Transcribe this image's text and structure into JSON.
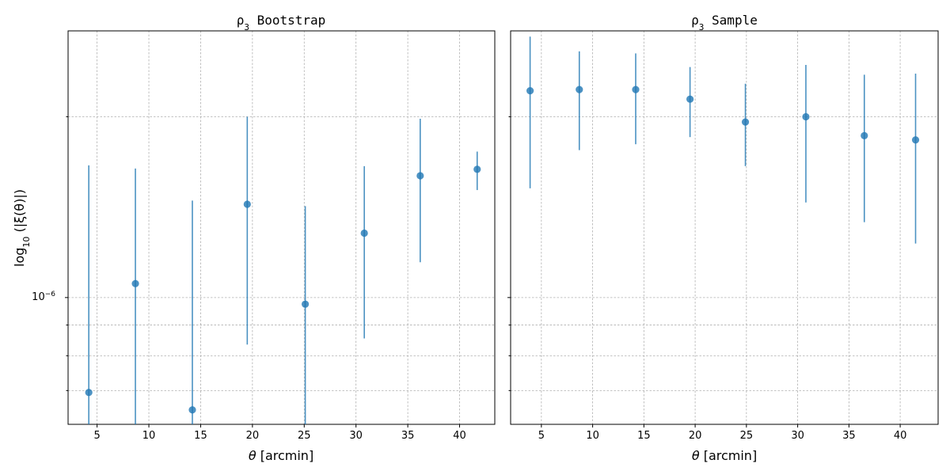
{
  "chart_data": [
    {
      "type": "scatter",
      "title_prefix": "ρ",
      "title_sub": "3",
      "title_suffix": " Bootstrap",
      "xlabel_symbol": "θ",
      "xlabel_unit": " [arcmin]",
      "ylabel_prefix": "log",
      "ylabel_sub": "10",
      "ylabel_suffix": " (|ξ(θ)|)",
      "x_ticks": [
        5,
        10,
        15,
        20,
        25,
        30,
        35,
        40
      ],
      "y_tick_label_base": "10",
      "y_tick_label_exp": "−6",
      "xlim": [
        2.2,
        43.4
      ],
      "ylim": [
        6.15e-07,
        2.78e-06
      ],
      "y_scale": "log",
      "grid": true,
      "color": "#1f77b4",
      "series": [
        {
          "x": [
            4.2,
            8.7,
            14.2,
            19.5,
            25.1,
            30.8,
            36.2,
            41.7
          ],
          "y": [
            6.95e-07,
            1.055e-06,
            6.5e-07,
            1.43e-06,
            9.75e-07,
            1.28e-06,
            1.595e-06,
            1.635e-06
          ],
          "yerr_low": [
            5e-07,
            5e-07,
            5e-07,
            8.35e-07,
            5e-07,
            8.55e-07,
            1.145e-06,
            1.51e-06
          ],
          "yerr_high": [
            1.66e-06,
            1.64e-06,
            1.45e-06,
            2e-06,
            1.42e-06,
            1.655e-06,
            1.985e-06,
            1.75e-06
          ]
        }
      ]
    },
    {
      "type": "scatter",
      "title_prefix": "ρ",
      "title_sub": "3",
      "title_suffix": " Sample",
      "xlabel_symbol": "θ",
      "xlabel_unit": " [arcmin]",
      "x_ticks": [
        5,
        10,
        15,
        20,
        25,
        30,
        35,
        40
      ],
      "xlim": [
        2.0,
        43.7
      ],
      "ylim": [
        6.15e-07,
        2.78e-06
      ],
      "y_scale": "log",
      "grid": true,
      "color": "#1f77b4",
      "series": [
        {
          "x": [
            3.9,
            8.7,
            14.2,
            19.5,
            24.9,
            30.8,
            36.5,
            41.5
          ],
          "y": [
            2.21e-06,
            2.22e-06,
            2.22e-06,
            2.14e-06,
            1.96e-06,
            2e-06,
            1.86e-06,
            1.83e-06
          ],
          "yerr_low": [
            1.52e-06,
            1.76e-06,
            1.8e-06,
            1.85e-06,
            1.655e-06,
            1.44e-06,
            1.335e-06,
            1.23e-06
          ],
          "yerr_high": [
            2.72e-06,
            2.57e-06,
            2.55e-06,
            2.42e-06,
            2.27e-06,
            2.44e-06,
            2.35e-06,
            2.36e-06
          ]
        }
      ]
    }
  ]
}
